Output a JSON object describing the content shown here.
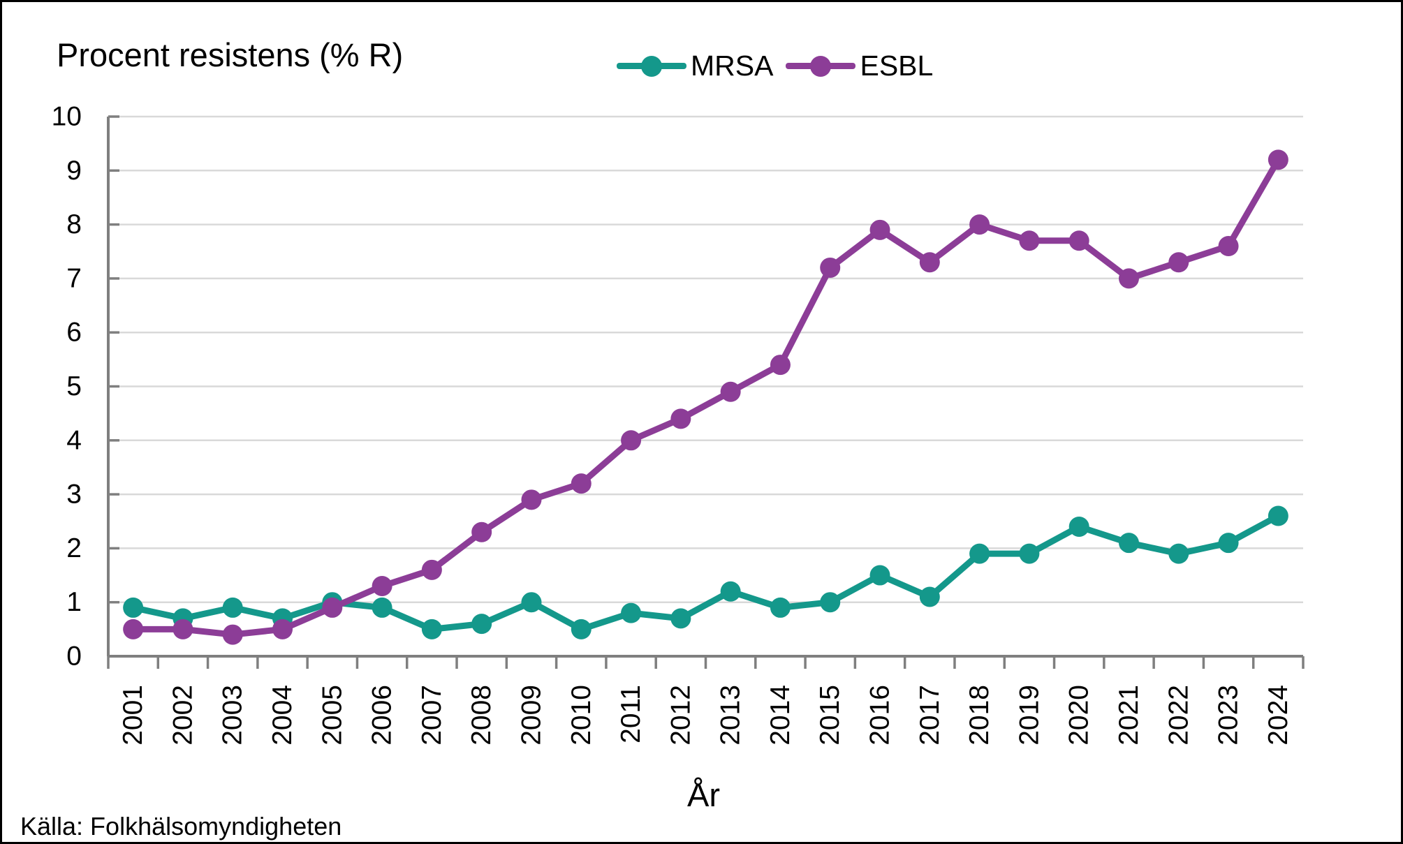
{
  "chart_data": {
    "type": "line",
    "title": "Procent resistens (% R)",
    "xlabel": "År",
    "ylabel": "",
    "source": "Källa: Folkhälsomyndigheten",
    "ylim": [
      0,
      10
    ],
    "yticks": [
      0,
      1,
      2,
      3,
      4,
      5,
      6,
      7,
      8,
      9,
      10
    ],
    "grid": "horizontal",
    "legend_position": "top-center",
    "categories": [
      "2001",
      "2002",
      "2003",
      "2004",
      "2005",
      "2006",
      "2007",
      "2008",
      "2009",
      "2010",
      "2011",
      "2012",
      "2013",
      "2014",
      "2015",
      "2016",
      "2017",
      "2018",
      "2019",
      "2020",
      "2021",
      "2022",
      "2023",
      "2024"
    ],
    "series": [
      {
        "name": "MRSA",
        "color": "#14988B",
        "values": [
          0.9,
          0.7,
          0.9,
          0.7,
          1.0,
          0.9,
          0.5,
          0.6,
          1.0,
          0.5,
          0.8,
          0.7,
          1.2,
          0.9,
          1.0,
          1.5,
          1.1,
          1.9,
          1.9,
          2.4,
          2.1,
          1.9,
          2.1,
          2.6
        ]
      },
      {
        "name": "ESBL",
        "color": "#8C3D97",
        "values": [
          0.5,
          0.5,
          0.4,
          0.5,
          0.9,
          1.3,
          1.6,
          2.3,
          2.9,
          3.2,
          4.0,
          4.4,
          4.9,
          5.4,
          7.2,
          7.9,
          7.3,
          8.0,
          7.7,
          7.7,
          7.0,
          7.3,
          7.6,
          9.2
        ]
      }
    ],
    "axis_color": "#7f7f7f",
    "gridline_color": "#d9d9d9",
    "text_color": "#000000"
  }
}
